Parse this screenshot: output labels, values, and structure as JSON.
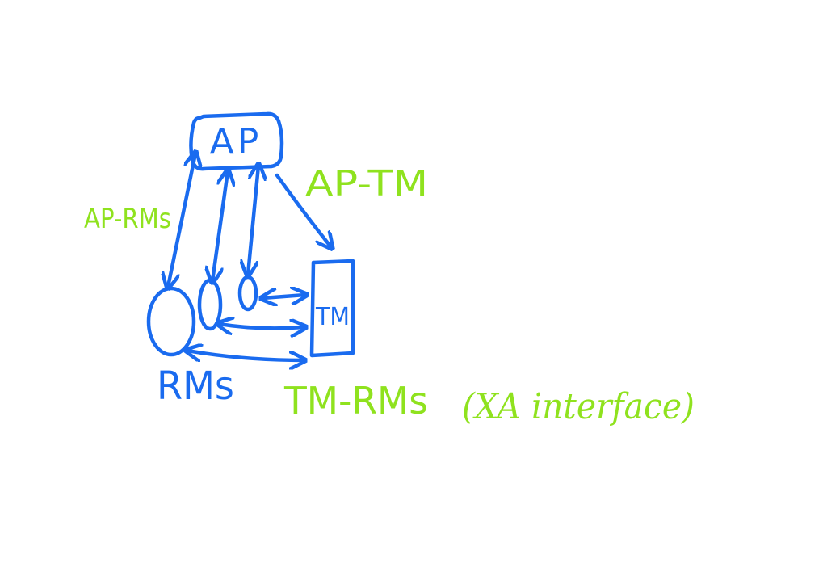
{
  "colors": {
    "components": "#1A6BEF",
    "interfaces": "#8FE21E",
    "background": "#FFFFFF"
  },
  "nodes": {
    "ap": {
      "label": "AP"
    },
    "tm": {
      "label": "TM"
    },
    "rms": {
      "label": "RMs"
    }
  },
  "interfaces": {
    "ap_rms": {
      "label": "AP-RMs"
    },
    "ap_tm": {
      "label": "AP-TM"
    },
    "tm_rms": {
      "label": "TM-RMs",
      "note": "(XA interface)"
    }
  }
}
